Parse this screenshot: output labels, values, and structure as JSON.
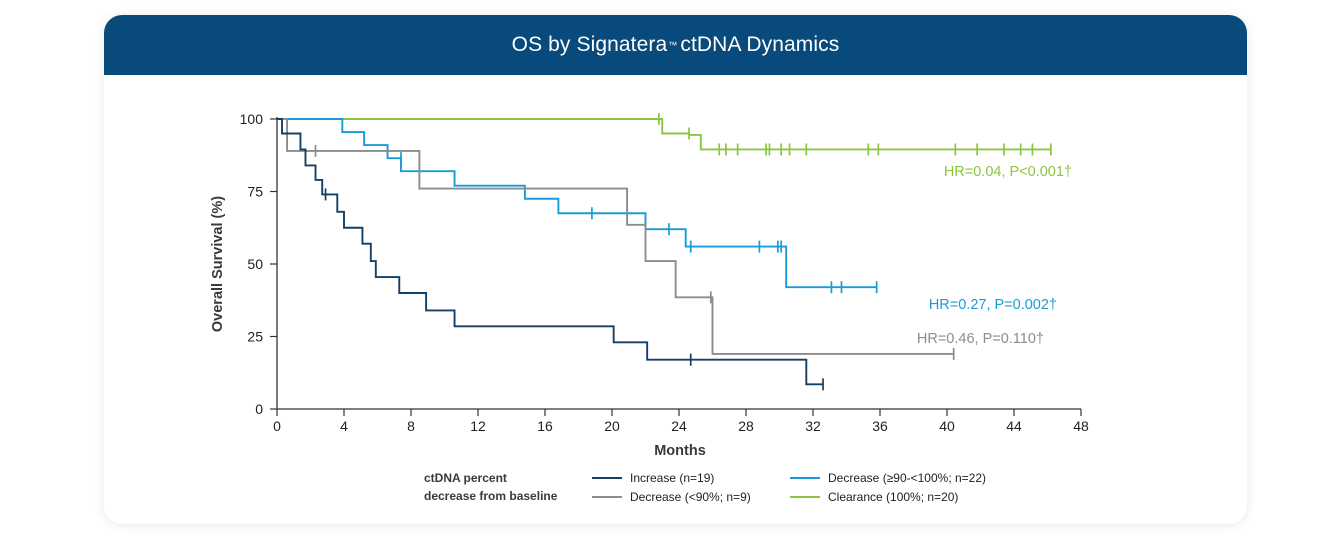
{
  "header": {
    "title_pre": "OS by Signatera",
    "title_tm": "™",
    "title_post": "ctDNA Dynamics"
  },
  "colors": {
    "header_bg": "#084a7c",
    "increase": "#143f66",
    "decrease_lt90": "#8a8d90",
    "decrease_ge90": "#1a9bd7",
    "clearance": "#8cc53f"
  },
  "chart_data": {
    "type": "line",
    "subtype": "kaplan-meier step",
    "xlabel": "Months",
    "ylabel": "Overall Survival (%)",
    "xlim": [
      0,
      48
    ],
    "ylim": [
      0,
      100
    ],
    "xticks": [
      0,
      4,
      8,
      12,
      16,
      20,
      24,
      28,
      32,
      36,
      40,
      44,
      48
    ],
    "yticks": [
      0,
      25,
      50,
      75,
      100
    ],
    "legend_title": [
      "ctDNA percent",
      "decrease from baseline"
    ],
    "series": [
      {
        "key": "clearance",
        "name": "Clearance (100%; n=20)",
        "color": "#8cc53f",
        "steps": [
          [
            0,
            100
          ],
          [
            23,
            100
          ],
          [
            23,
            95
          ],
          [
            24.6,
            95
          ],
          [
            24.6,
            94.5
          ],
          [
            25.3,
            94.5
          ],
          [
            25.3,
            89.5
          ],
          [
            46.2,
            89.5
          ]
        ],
        "censors": [
          [
            22.8,
            100
          ],
          [
            24.6,
            95
          ],
          [
            26.4,
            89.5
          ],
          [
            26.8,
            89.5
          ],
          [
            27.5,
            89.5
          ],
          [
            29.2,
            89.5
          ],
          [
            29.4,
            89.5
          ],
          [
            30.1,
            89.5
          ],
          [
            30.6,
            89.5
          ],
          [
            31.6,
            89.5
          ],
          [
            35.3,
            89.5
          ],
          [
            35.9,
            89.5
          ],
          [
            40.5,
            89.5
          ],
          [
            41.8,
            89.5
          ],
          [
            43.4,
            89.5
          ],
          [
            44.4,
            89.5
          ],
          [
            45.1,
            89.5
          ],
          [
            46.2,
            89.5
          ]
        ],
        "hr_text": "HR=0.04, P<0.001†"
      },
      {
        "key": "decrease_ge90",
        "name": "Decrease (≥90-<100%; n=22)",
        "color": "#1a9bd7",
        "steps": [
          [
            0,
            100
          ],
          [
            3.9,
            100
          ],
          [
            3.9,
            95.5
          ],
          [
            5.2,
            95.5
          ],
          [
            5.2,
            91
          ],
          [
            6.6,
            91
          ],
          [
            6.6,
            86.5
          ],
          [
            7.4,
            86.5
          ],
          [
            7.4,
            82
          ],
          [
            10.6,
            82
          ],
          [
            10.6,
            77
          ],
          [
            14.8,
            77
          ],
          [
            14.8,
            72.5
          ],
          [
            16.8,
            72.5
          ],
          [
            16.8,
            67.5
          ],
          [
            22,
            67.5
          ],
          [
            22,
            62
          ],
          [
            24.4,
            62
          ],
          [
            24.4,
            56
          ],
          [
            30.4,
            56
          ],
          [
            30.4,
            42
          ],
          [
            35.8,
            42
          ]
        ],
        "censors": [
          [
            7.4,
            86.5
          ],
          [
            18.8,
            67.5
          ],
          [
            23.4,
            62
          ],
          [
            24.7,
            56
          ],
          [
            28.8,
            56
          ],
          [
            29.9,
            56
          ],
          [
            30.1,
            56
          ],
          [
            33.1,
            42
          ],
          [
            33.7,
            42
          ],
          [
            35.8,
            42
          ]
        ],
        "hr_text": "HR=0.27, P=0.002†"
      },
      {
        "key": "decrease_lt90",
        "name": "Decrease (<90%; n=9)",
        "color": "#8a8d90",
        "steps": [
          [
            0,
            100
          ],
          [
            0.6,
            100
          ],
          [
            0.6,
            89
          ],
          [
            8.5,
            89
          ],
          [
            8.5,
            76
          ],
          [
            20.9,
            76
          ],
          [
            20.9,
            63.5
          ],
          [
            22,
            63.5
          ],
          [
            22,
            51
          ],
          [
            23.8,
            51
          ],
          [
            23.8,
            38.5
          ],
          [
            26,
            38.5
          ],
          [
            26,
            19
          ],
          [
            40.4,
            19
          ]
        ],
        "censors": [
          [
            2.3,
            89
          ],
          [
            25.9,
            38.5
          ],
          [
            40.4,
            19
          ]
        ],
        "hr_text": "HR=0.46, P=0.110†"
      },
      {
        "key": "increase",
        "name": "Increase (n=19)",
        "color": "#143f66",
        "steps": [
          [
            0,
            100
          ],
          [
            0.3,
            100
          ],
          [
            0.3,
            95
          ],
          [
            1.4,
            95
          ],
          [
            1.4,
            89.5
          ],
          [
            1.7,
            89.5
          ],
          [
            1.7,
            84
          ],
          [
            2.3,
            84
          ],
          [
            2.3,
            79
          ],
          [
            2.7,
            79
          ],
          [
            2.7,
            74
          ],
          [
            3.6,
            74
          ],
          [
            3.6,
            68
          ],
          [
            4,
            68
          ],
          [
            4,
            62.5
          ],
          [
            5.1,
            62.5
          ],
          [
            5.1,
            57
          ],
          [
            5.6,
            57
          ],
          [
            5.6,
            51
          ],
          [
            5.9,
            51
          ],
          [
            5.9,
            45.5
          ],
          [
            7.3,
            45.5
          ],
          [
            7.3,
            40
          ],
          [
            8.9,
            40
          ],
          [
            8.9,
            34
          ],
          [
            10.6,
            34
          ],
          [
            10.6,
            28.5
          ],
          [
            20.1,
            28.5
          ],
          [
            20.1,
            23
          ],
          [
            22.1,
            23
          ],
          [
            22.1,
            17
          ],
          [
            31.6,
            17
          ],
          [
            31.6,
            8.5
          ],
          [
            32.6,
            8.5
          ]
        ],
        "censors": [
          [
            2.9,
            74
          ],
          [
            24.7,
            17
          ],
          [
            32.6,
            8.5
          ]
        ],
        "hr_text": ""
      }
    ]
  },
  "legend": {
    "title_line1": "ctDNA percent",
    "title_line2": "decrease from baseline",
    "items": [
      {
        "label": "Increase (n=19)",
        "color": "#143f66"
      },
      {
        "label": "Decrease (≥90-<100%; n=22)",
        "color": "#1a9bd7"
      },
      {
        "label": "Decrease (<90%; n=9)",
        "color": "#8a8d90"
      },
      {
        "label": "Clearance (100%; n=20)",
        "color": "#8cc53f"
      }
    ]
  }
}
